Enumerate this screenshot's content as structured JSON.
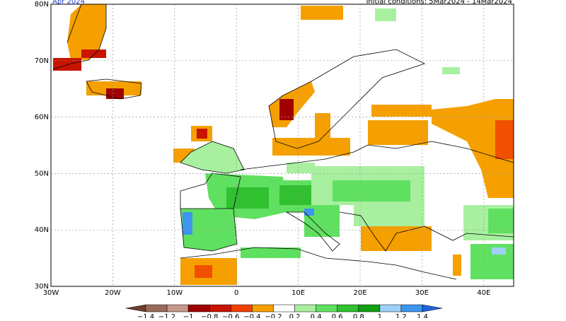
{
  "header": {
    "title": "Apr 2024",
    "subtitle": "Initial conditions: 5Mar2024 - 14Mar2024"
  },
  "map": {
    "lat_labels": [
      "80N",
      "70N",
      "60N",
      "50N",
      "40N",
      "30N"
    ],
    "lon_labels": [
      "30W",
      "20W",
      "10W",
      "0",
      "10E",
      "20E",
      "30E",
      "40E"
    ]
  },
  "colorbar": {
    "labels": [
      "−1.4",
      "−1.2",
      "−1",
      "−0.8",
      "−0.6",
      "−0.4",
      "−0.2",
      "0.2",
      "0.4",
      "0.6",
      "0.8",
      "1",
      "1.2",
      "1.4"
    ],
    "colors": [
      "#6e4030",
      "#9a6a58",
      "#c49a8c",
      "#a00000",
      "#c81400",
      "#f04000",
      "#f5a000",
      "#ffffff",
      "#a8f0a0",
      "#60e060",
      "#30c030",
      "#10a010",
      "#a0d0f8",
      "#3c96f0",
      "#1e64dc"
    ]
  }
}
